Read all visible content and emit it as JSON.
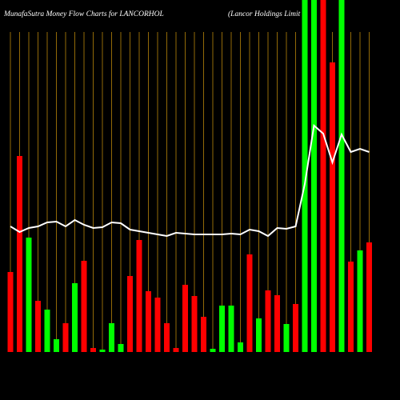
{
  "chart_data": {
    "type": "bar-line",
    "title": "MunafaSutra  Money Flow  Charts for LANCORHOL",
    "subtitle": "(Lancor Holdings Limit",
    "categories": [
      null,
      null,
      null,
      null,
      null,
      null,
      null,
      null,
      null,
      null,
      null,
      null,
      null,
      null,
      null,
      null,
      null,
      null,
      null,
      null,
      null,
      null,
      null,
      null,
      null,
      null,
      null,
      null,
      null,
      null,
      null,
      null,
      null,
      null,
      null,
      null,
      null,
      null,
      null,
      null
    ],
    "series": [
      {
        "kind": "bar",
        "values": [
          100,
          245,
          143,
          64,
          53,
          16,
          36,
          86,
          114,
          5,
          3,
          36,
          10,
          95,
          140,
          76,
          68,
          36,
          5,
          84,
          70,
          44,
          4,
          58,
          58,
          12,
          122,
          42,
          77,
          71,
          35,
          60,
          440,
          440,
          440,
          362,
          440,
          113,
          127,
          137
        ],
        "colors": [
          "#ff0000",
          "#ff0000",
          "#00ff00",
          "#ff0000",
          "#00ff00",
          "#00ff00",
          "#ff0000",
          "#00ff00",
          "#ff0000",
          "#ff0000",
          "#00ff00",
          "#00ff00",
          "#00ff00",
          "#ff0000",
          "#ff0000",
          "#ff0000",
          "#ff0000",
          "#ff0000",
          "#ff0000",
          "#ff0000",
          "#ff0000",
          "#ff0000",
          "#00ff00",
          "#00ff00",
          "#00ff00",
          "#00ff00",
          "#ff0000",
          "#00ff00",
          "#ff0000",
          "#ff0000",
          "#00ff00",
          "#ff0000",
          "#00ff00",
          "#00ff00",
          "#ff0000",
          "#ff0000",
          "#00ff00",
          "#ff0000",
          "#00ff00",
          "#ff0000"
        ]
      },
      {
        "kind": "line",
        "color": "#ffffff",
        "values": [
          157,
          150,
          155,
          157,
          162,
          163,
          157,
          165,
          159,
          155,
          156,
          162,
          161,
          153,
          151,
          149,
          147,
          145,
          149,
          148,
          147,
          147,
          147,
          147,
          148,
          147,
          153,
          151,
          145,
          155,
          154,
          157,
          210,
          283,
          273,
          237,
          272,
          250,
          254,
          250
        ]
      }
    ],
    "ylim": [
      0,
      440
    ],
    "grid_color": "#b8860b",
    "background": "#000000"
  }
}
